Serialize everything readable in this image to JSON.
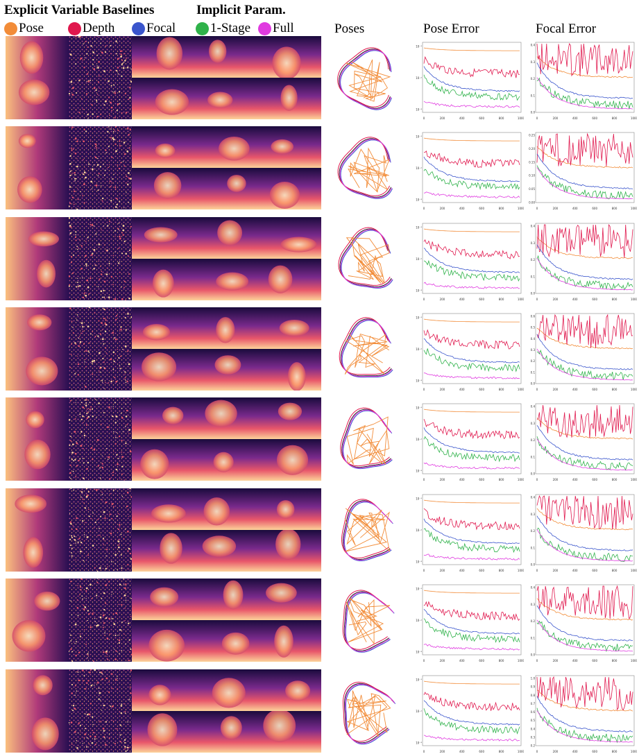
{
  "figure": {
    "header": {
      "explicit_title": "Explicit Variable Baselines",
      "implicit_title": "Implicit Param.",
      "legend": [
        {
          "label": "Pose",
          "color": "#f28c38"
        },
        {
          "label": "Depth",
          "color": "#e0174d"
        },
        {
          "label": "Focal",
          "color": "#3a55cc"
        },
        {
          "label": "1-Stage",
          "color": "#2fb24a"
        },
        {
          "label": "Full",
          "color": "#e03ae0"
        }
      ],
      "col_poses": "Poses",
      "col_pose_error": "Pose Error",
      "col_focal_error": "Focal Error"
    },
    "x_ticks": [
      "0",
      "200",
      "400",
      "600",
      "800",
      "1000"
    ],
    "pose_y_ticks": [
      "10⁻¹",
      "10⁻²",
      "10⁻³"
    ],
    "focal_ticks": [
      [
        "0.0",
        "0.1",
        "0.2",
        "0.3",
        "0.4"
      ],
      [
        "0.00",
        "0.05",
        "0.10",
        "0.15",
        "0.20",
        "0.25"
      ],
      [
        "0.0",
        "0.1",
        "0.2",
        "0.3",
        "0.4"
      ],
      [
        "0.0",
        "0.1",
        "0.2",
        "0.3",
        "0.4",
        "0.5",
        "0.6"
      ],
      [
        "0.0",
        "0.1",
        "0.2",
        "0.3",
        "0.4"
      ],
      [
        "0.0",
        "0.1",
        "0.2",
        "0.3",
        "0.4"
      ],
      [
        "0.0",
        "0.1",
        "0.2",
        "0.3",
        "0.4"
      ],
      [
        "0.2",
        "0.3",
        "0.4",
        "0.5",
        "0.6",
        "0.7",
        "0.8",
        "0.9",
        "1.0"
      ]
    ],
    "colors": {
      "pose": "#f28c38",
      "depth": "#e0174d",
      "focal": "#3a55cc",
      "one_stage": "#2fb24a",
      "full": "#e03ae0"
    }
  }
}
